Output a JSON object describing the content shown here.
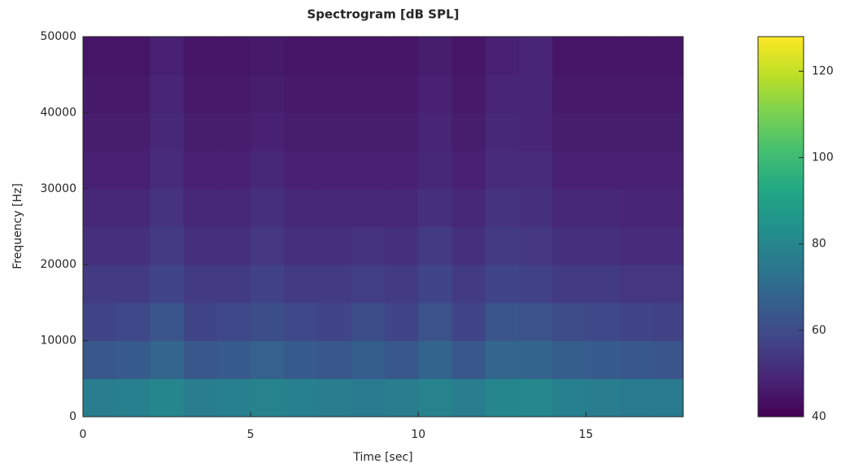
{
  "chart_data": {
    "type": "heatmap",
    "title": "Spectrogram [dB SPL]",
    "x_label": "Time [sec]",
    "y_label": "Frequency [Hz]",
    "colormap": "viridis",
    "xbins": [
      0,
      1,
      2,
      3,
      4,
      5,
      6,
      7,
      8,
      9,
      10,
      11,
      12,
      13,
      14,
      15,
      16,
      17,
      17.9
    ],
    "ybins": [
      0,
      5000,
      10000,
      15000,
      20000,
      25000,
      30000,
      35000,
      40000,
      45000,
      50000
    ],
    "z": [
      [
        77,
        78,
        80,
        77,
        78,
        79,
        78,
        77,
        76,
        77,
        79,
        77,
        80,
        81,
        78,
        77,
        76,
        76
      ],
      [
        64,
        65,
        69,
        64,
        65,
        67,
        65,
        64,
        66,
        64,
        68,
        64,
        69,
        68,
        66,
        65,
        64,
        63
      ],
      [
        58,
        59,
        63,
        58,
        59,
        61,
        59,
        58,
        61,
        58,
        62,
        58,
        63,
        62,
        60,
        59,
        58,
        57
      ],
      [
        55,
        55,
        58,
        55,
        55,
        57,
        55,
        55,
        56,
        55,
        58,
        55,
        58,
        57,
        55,
        55,
        54,
        54
      ],
      [
        52,
        52,
        55,
        52,
        52,
        54,
        52,
        52,
        53,
        52,
        55,
        52,
        55,
        54,
        52,
        52,
        51,
        51
      ],
      [
        50,
        50,
        53,
        50,
        50,
        52,
        50,
        50,
        50,
        50,
        52,
        50,
        53,
        52,
        50,
        50,
        49,
        49
      ],
      [
        48,
        48,
        51,
        48,
        48,
        50,
        48,
        48,
        48,
        48,
        50,
        48,
        51,
        51,
        48,
        48,
        48,
        48
      ],
      [
        47,
        47,
        50,
        47,
        47,
        48,
        47,
        47,
        47,
        47,
        49,
        47,
        50,
        49,
        47,
        47,
        47,
        47
      ],
      [
        46,
        46,
        49,
        46,
        46,
        47,
        46,
        46,
        46,
        46,
        48,
        46,
        49,
        49,
        46,
        46,
        46,
        46
      ],
      [
        45,
        45,
        48,
        45,
        45,
        46,
        45,
        45,
        45,
        45,
        47,
        45,
        48,
        49,
        45,
        45,
        45,
        45
      ]
    ],
    "xlim": [
      0,
      17.9
    ],
    "xticks": [
      0,
      5,
      10,
      15
    ],
    "ylim": [
      0,
      50000
    ],
    "yticks": [
      0,
      10000,
      20000,
      30000,
      40000,
      50000
    ],
    "clim": [
      40,
      128
    ],
    "cticks": [
      40,
      60,
      80,
      100,
      120
    ]
  }
}
